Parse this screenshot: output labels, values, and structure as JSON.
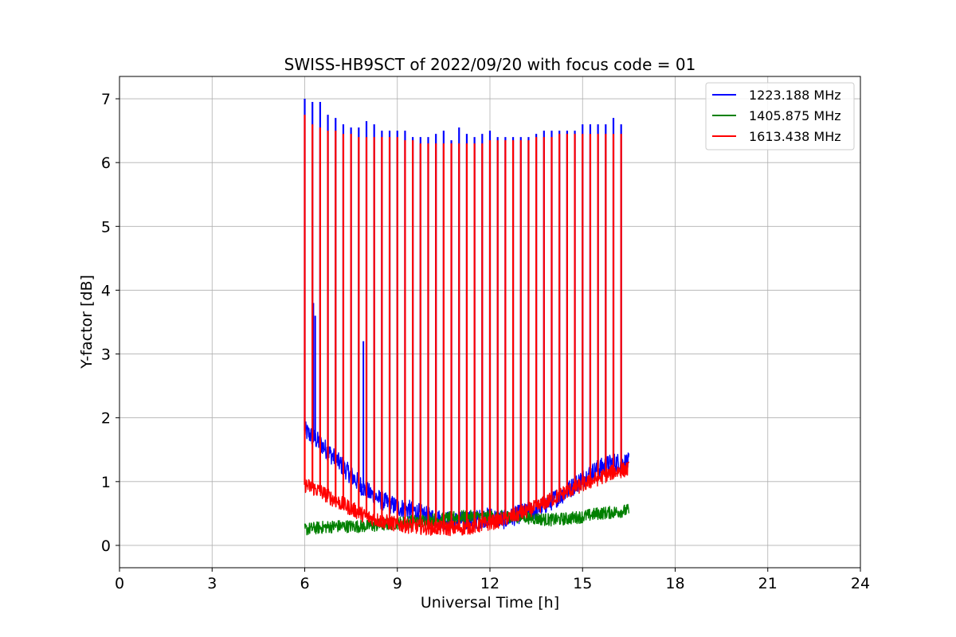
{
  "chart_data": {
    "type": "line",
    "title": "SWISS-HB9SCT of 2022/09/20 with focus code = 01",
    "xlabel": "Universal Time [h]",
    "ylabel": "Y-factor [dB]",
    "xlim": [
      0,
      24
    ],
    "ylim": [
      -0.35,
      7.35
    ],
    "xticks": [
      0,
      3,
      6,
      9,
      12,
      15,
      18,
      21,
      24
    ],
    "yticks": [
      0,
      1,
      2,
      3,
      4,
      5,
      6,
      7
    ],
    "grid": true,
    "legend_position": "top-right",
    "series": [
      {
        "name": "1223.188 MHz",
        "color": "#0000ff",
        "baseline": {
          "x": [
            6.0,
            6.5,
            7.0,
            7.5,
            8.0,
            8.5,
            9.0,
            9.5,
            10.0,
            10.5,
            11.0,
            11.5,
            12.0,
            12.5,
            13.0,
            13.5,
            14.0,
            14.5,
            15.0,
            15.5,
            16.0,
            16.5
          ],
          "y": [
            1.8,
            1.6,
            1.35,
            1.1,
            0.85,
            0.7,
            0.6,
            0.55,
            0.45,
            0.4,
            0.38,
            0.4,
            0.45,
            0.4,
            0.5,
            0.55,
            0.7,
            0.85,
            1.05,
            1.2,
            1.3,
            1.3
          ]
        },
        "noise": 0.15,
        "peaks": {
          "x": [
            6.0,
            6.25,
            6.5,
            6.75,
            7.0,
            7.25,
            7.5,
            7.75,
            8.0,
            8.25,
            8.5,
            8.75,
            9.0,
            9.25,
            9.5,
            9.75,
            10.0,
            10.25,
            10.5,
            10.75,
            11.0,
            11.25,
            11.5,
            11.75,
            12.0,
            12.25,
            12.5,
            12.75,
            13.0,
            13.25,
            13.5,
            13.75,
            14.0,
            14.25,
            14.5,
            14.75,
            15.0,
            15.25,
            15.5,
            15.75,
            16.0,
            16.25
          ],
          "y": [
            7.0,
            6.95,
            6.95,
            6.75,
            6.7,
            6.6,
            6.55,
            6.55,
            6.65,
            6.6,
            6.5,
            6.5,
            6.5,
            6.5,
            6.4,
            6.4,
            6.4,
            6.45,
            6.5,
            6.35,
            6.55,
            6.45,
            6.4,
            6.45,
            6.5,
            6.4,
            6.4,
            6.4,
            6.4,
            6.4,
            6.45,
            6.5,
            6.5,
            6.5,
            6.5,
            6.5,
            6.6,
            6.6,
            6.6,
            6.6,
            6.7,
            6.6
          ]
        },
        "spikes": {
          "x": [
            6.28,
            6.34,
            7.9
          ],
          "y": [
            3.8,
            3.6,
            3.2
          ]
        }
      },
      {
        "name": "1405.875 MHz",
        "color": "#008000",
        "baseline": {
          "x": [
            6.0,
            6.5,
            7.0,
            7.5,
            8.0,
            8.5,
            9.0,
            9.5,
            10.0,
            10.5,
            11.0,
            11.5,
            12.0,
            12.5,
            13.0,
            13.5,
            14.0,
            14.5,
            15.0,
            15.5,
            16.0,
            16.5
          ],
          "y": [
            0.25,
            0.28,
            0.3,
            0.3,
            0.3,
            0.32,
            0.35,
            0.38,
            0.4,
            0.42,
            0.45,
            0.45,
            0.45,
            0.45,
            0.45,
            0.42,
            0.4,
            0.42,
            0.45,
            0.5,
            0.52,
            0.55
          ]
        },
        "noise": 0.1,
        "peaks": {
          "x": [],
          "y": []
        },
        "spikes": {
          "x": [],
          "y": []
        }
      },
      {
        "name": "1613.438 MHz",
        "color": "#ff0000",
        "baseline": {
          "x": [
            6.0,
            6.5,
            7.0,
            7.5,
            8.0,
            8.5,
            9.0,
            9.5,
            10.0,
            10.5,
            11.0,
            11.5,
            12.0,
            12.5,
            13.0,
            13.5,
            14.0,
            14.5,
            15.0,
            15.5,
            16.0,
            16.5
          ],
          "y": [
            0.95,
            0.85,
            0.7,
            0.58,
            0.45,
            0.38,
            0.33,
            0.3,
            0.28,
            0.27,
            0.27,
            0.3,
            0.35,
            0.42,
            0.5,
            0.6,
            0.72,
            0.85,
            0.95,
            1.05,
            1.15,
            1.2
          ]
        },
        "noise": 0.12,
        "peaks": {
          "x": [
            6.0,
            6.25,
            6.5,
            6.75,
            7.0,
            7.25,
            7.5,
            7.75,
            8.0,
            8.25,
            8.5,
            8.75,
            9.0,
            9.25,
            9.5,
            9.75,
            10.0,
            10.25,
            10.5,
            10.75,
            11.0,
            11.25,
            11.5,
            11.75,
            12.0,
            12.25,
            12.5,
            12.75,
            13.0,
            13.25,
            13.5,
            13.75,
            14.0,
            14.25,
            14.5,
            14.75,
            15.0,
            15.25,
            15.5,
            15.75,
            16.0,
            16.25
          ],
          "y": [
            6.75,
            6.6,
            6.55,
            6.5,
            6.5,
            6.45,
            6.45,
            6.4,
            6.4,
            6.4,
            6.4,
            6.4,
            6.4,
            6.35,
            6.35,
            6.3,
            6.3,
            6.3,
            6.3,
            6.3,
            6.3,
            6.3,
            6.3,
            6.3,
            6.35,
            6.35,
            6.35,
            6.35,
            6.35,
            6.35,
            6.4,
            6.4,
            6.4,
            6.45,
            6.45,
            6.45,
            6.45,
            6.45,
            6.45,
            6.45,
            6.45,
            6.45
          ]
        },
        "spikes": {
          "x": [],
          "y": []
        }
      }
    ]
  }
}
